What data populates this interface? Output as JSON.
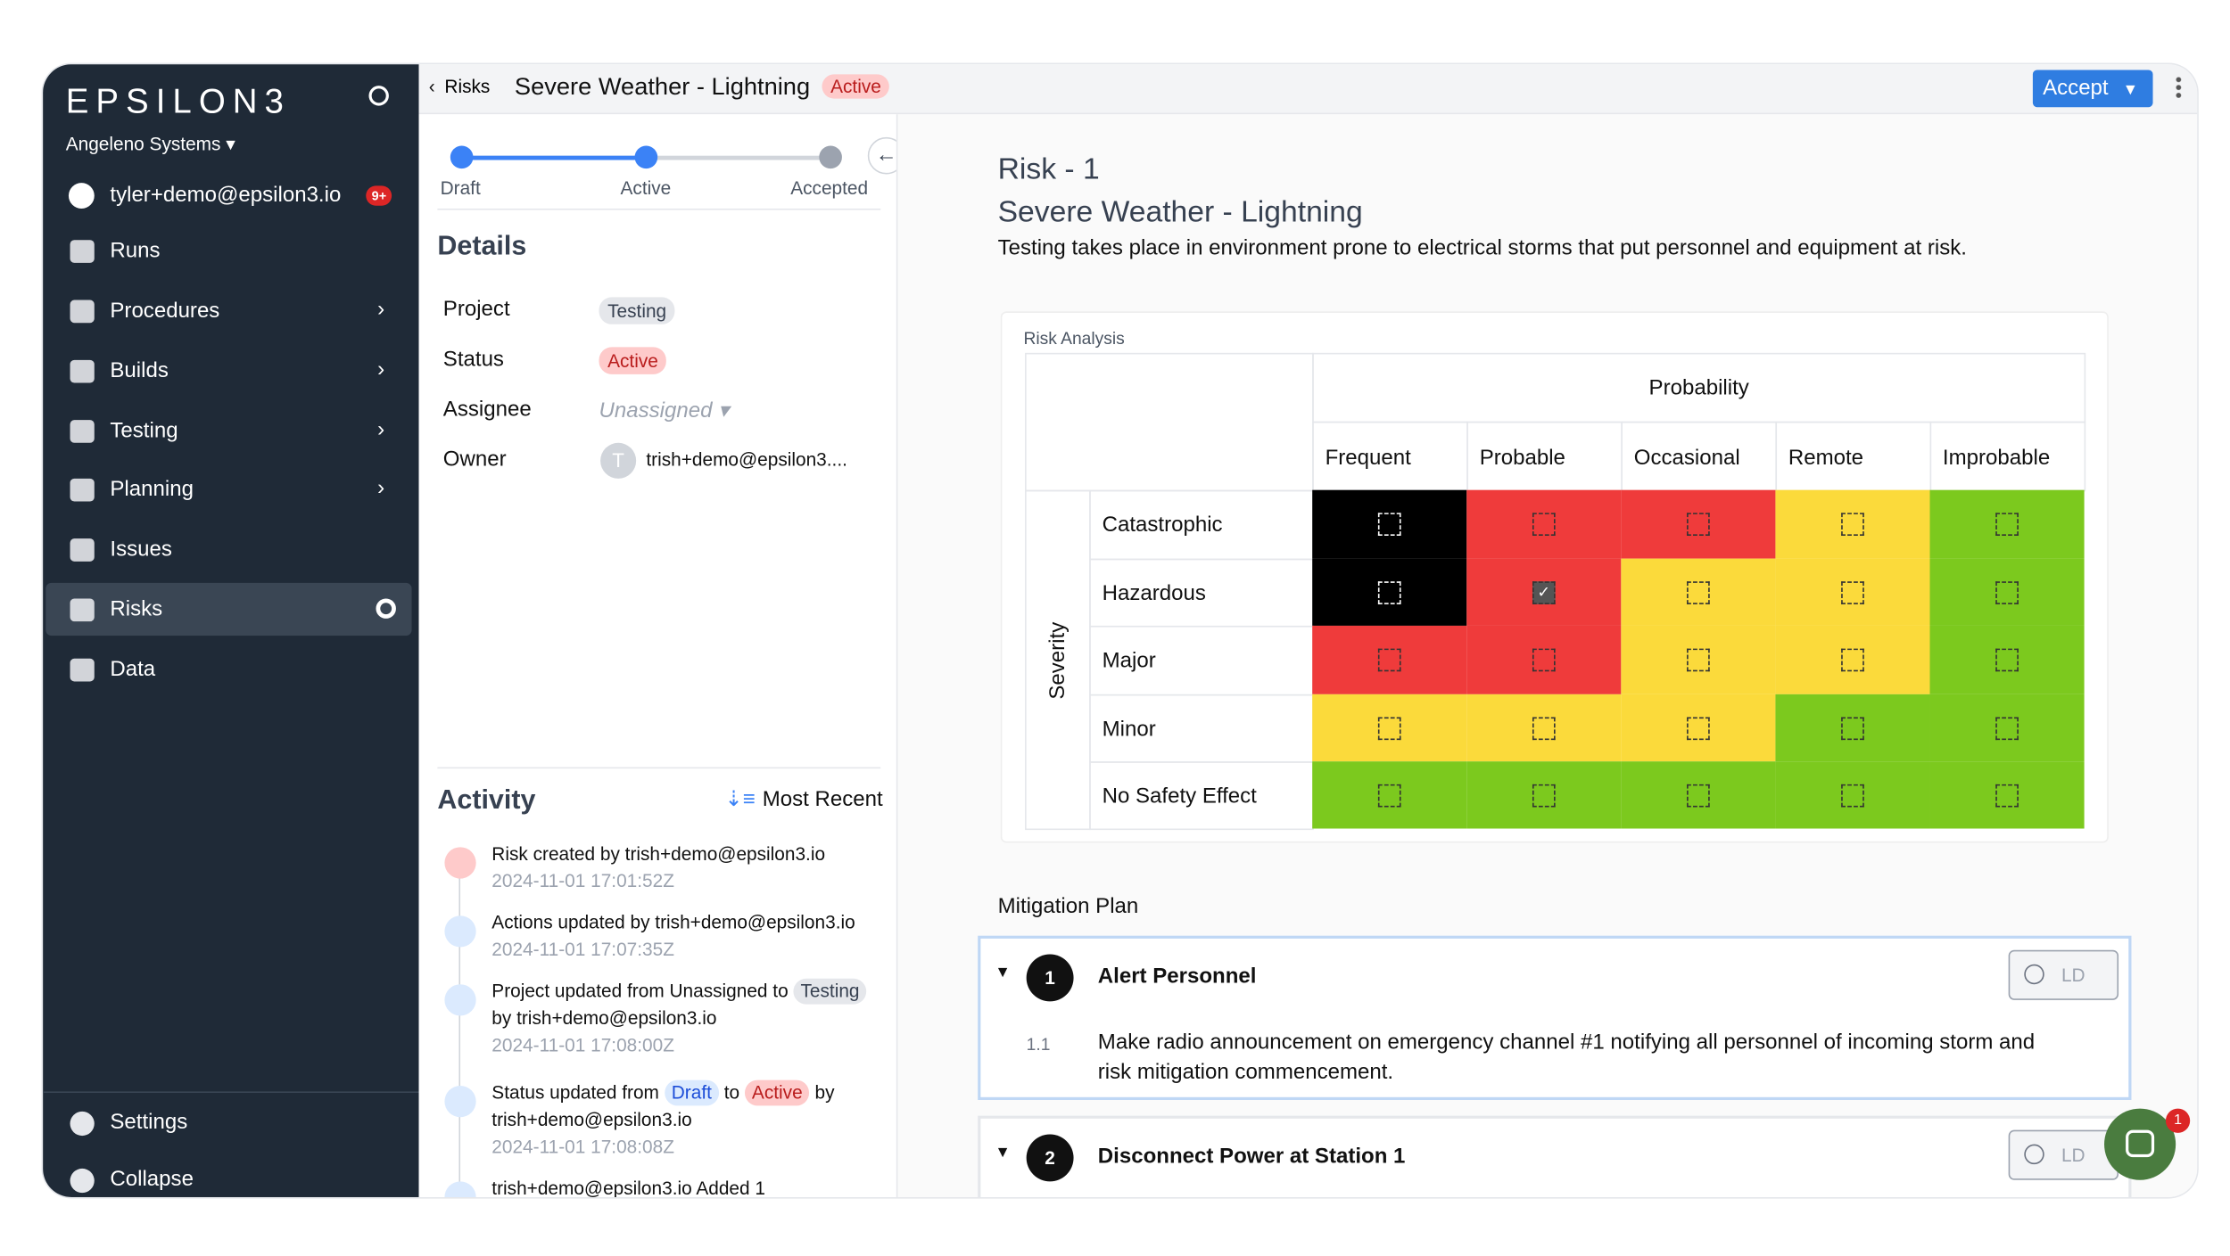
{
  "sidebar": {
    "brand": "EPSILON3",
    "org": "Angeleno Systems",
    "user": "tyler+demo@epsilon3.io",
    "badge": "9+",
    "nav": [
      {
        "label": "Runs",
        "expandable": false
      },
      {
        "label": "Procedures",
        "expandable": true
      },
      {
        "label": "Builds",
        "expandable": true
      },
      {
        "label": "Testing",
        "expandable": true
      },
      {
        "label": "Planning",
        "expandable": true
      },
      {
        "label": "Issues",
        "expandable": false
      },
      {
        "label": "Risks",
        "expandable": false,
        "active": true
      },
      {
        "label": "Data",
        "expandable": false
      }
    ],
    "footer": [
      "Settings",
      "Collapse"
    ]
  },
  "header": {
    "breadcrumb": "Risks",
    "title": "Severe Weather - Lightning",
    "status": "Active",
    "action": "Accept"
  },
  "stepper": {
    "steps": [
      "Draft",
      "Active",
      "Accepted"
    ],
    "current": 1
  },
  "details": {
    "heading": "Details",
    "fields": [
      {
        "label": "Project",
        "value": "Testing",
        "style": "gray"
      },
      {
        "label": "Status",
        "value": "Active",
        "style": "red"
      },
      {
        "label": "Assignee",
        "value": "Unassigned",
        "style": "muted"
      },
      {
        "label": "Owner",
        "value": "trish+demo@epsilon3....",
        "style": "owner",
        "initial": "T"
      }
    ]
  },
  "activity": {
    "heading": "Activity",
    "sort": "Most Recent",
    "entries": [
      {
        "parts": [
          {
            "text": "Risk created by trish+demo@epsilon3.io"
          }
        ],
        "time": "2024-11-01 17:01:52Z",
        "icon": "red"
      },
      {
        "parts": [
          {
            "text": "Actions updated by trish+demo@epsilon3.io"
          }
        ],
        "time": "2024-11-01 17:07:35Z",
        "icon": "blue"
      },
      {
        "parts": [
          {
            "text": "Project updated from Unassigned to"
          },
          {
            "text": "Testing",
            "chip": "gray"
          },
          {
            "text": "by trish+demo@epsilon3.io"
          }
        ],
        "time": "2024-11-01 17:08:00Z",
        "icon": "blue"
      },
      {
        "parts": [
          {
            "text": "Status updated from"
          },
          {
            "text": "Draft",
            "chip": "blue"
          },
          {
            "text": "to"
          },
          {
            "text": "Active",
            "chip": "red"
          },
          {
            "text": "by trish+demo@epsilon3.io"
          }
        ],
        "time": "2024-11-01 17:08:08Z",
        "icon": "blue"
      },
      {
        "parts": [
          {
            "text": "trish+demo@epsilon3.io Added 1"
          }
        ],
        "icon": "blue"
      }
    ]
  },
  "risk": {
    "id": "Risk - 1",
    "title": "Severe Weather - Lightning",
    "description": "Testing takes place in environment prone to electrical storms that put personnel and equipment at risk.",
    "analysis": {
      "label": "Risk Analysis",
      "x_axis": "Probability",
      "y_axis": "Severity",
      "columns": [
        "Frequent",
        "Probable",
        "Occasional",
        "Remote",
        "Improbable"
      ],
      "rows": [
        "Catastrophic",
        "Hazardous",
        "Major",
        "Minor",
        "No Safety Effect"
      ],
      "colors": [
        [
          "#000000",
          "#ef3b3b",
          "#ef3b3b",
          "#fbda3b",
          "#7cc91e"
        ],
        [
          "#000000",
          "#ef3b3b",
          "#fbda3b",
          "#fbda3b",
          "#7cc91e"
        ],
        [
          "#ef3b3b",
          "#ef3b3b",
          "#fbda3b",
          "#fbda3b",
          "#7cc91e"
        ],
        [
          "#fbda3b",
          "#fbda3b",
          "#fbda3b",
          "#7cc91e",
          "#7cc91e"
        ],
        [
          "#7cc91e",
          "#7cc91e",
          "#7cc91e",
          "#7cc91e",
          "#7cc91e"
        ]
      ],
      "checked": [
        [
          1,
          1
        ]
      ]
    }
  },
  "mitigation": {
    "heading": "Mitigation Plan",
    "steps": [
      {
        "number": "1",
        "title": "Alert Personnel",
        "signoff": "LD",
        "substeps": [
          {
            "number": "1.1",
            "text": "Make radio announcement on emergency channel #1 notifying all personnel of incoming storm and risk mitigation commencement."
          }
        ]
      },
      {
        "number": "2",
        "title": "Disconnect Power at Station 1",
        "signoff": "LD",
        "substeps": []
      }
    ]
  },
  "chat": {
    "badge": "1"
  }
}
